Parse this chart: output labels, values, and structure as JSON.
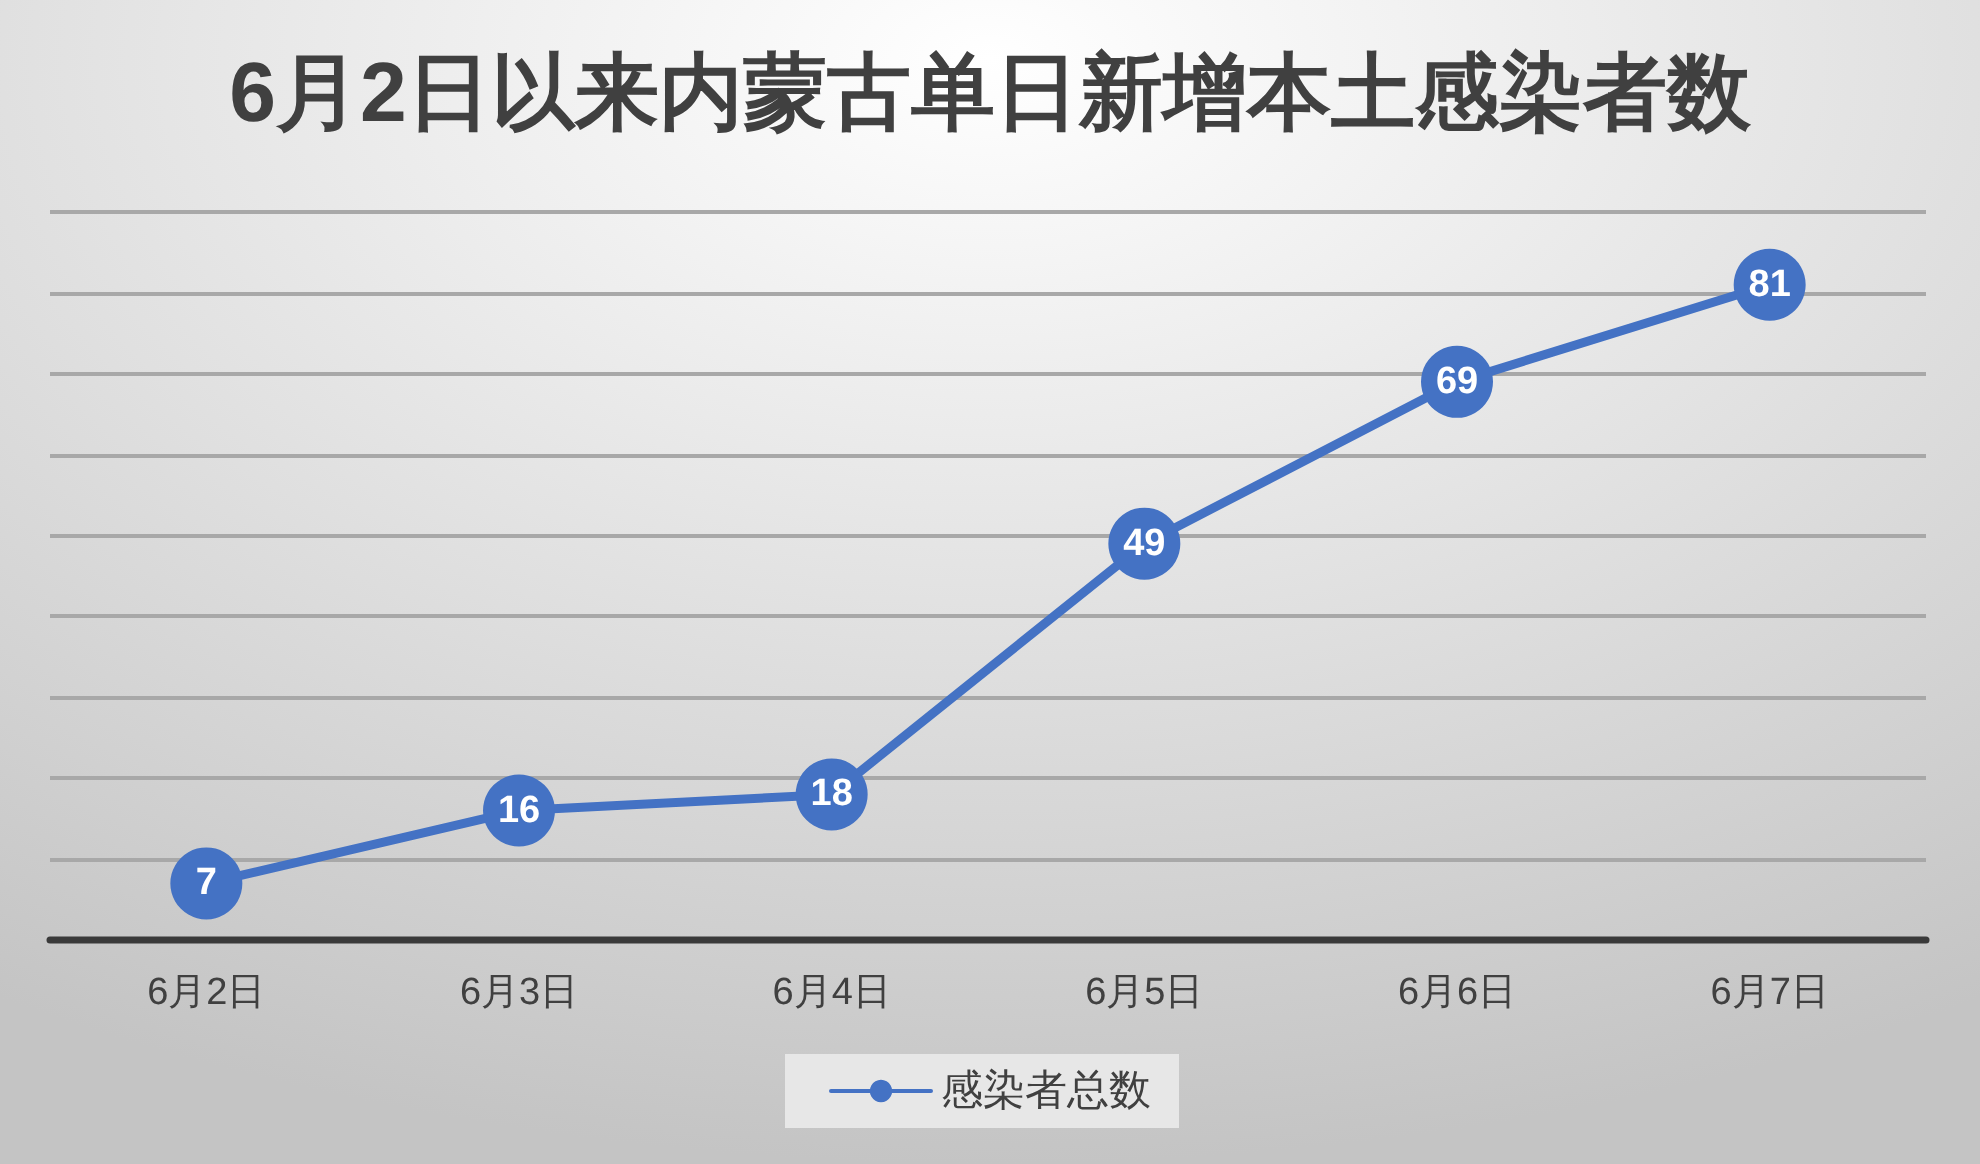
{
  "chart_data": {
    "type": "line",
    "title": "6月2日以来内蒙古单日新增本土感染者数",
    "categories": [
      "6月2日",
      "6月3日",
      "6月4日",
      "6月5日",
      "6月6日",
      "6月7日"
    ],
    "series": [
      {
        "name": "感染者总数",
        "color": "#4472c4",
        "values": [
          7,
          16,
          18,
          49,
          69,
          81
        ]
      }
    ],
    "ylim": [
      0,
      90
    ],
    "yticks": [
      0,
      10,
      20,
      30,
      40,
      50,
      60,
      70,
      80,
      90
    ],
    "tick_labels": "x",
    "grid": "y",
    "legend": "bottom",
    "marker": "circle",
    "line_style": "solid",
    "data_labels": true
  }
}
